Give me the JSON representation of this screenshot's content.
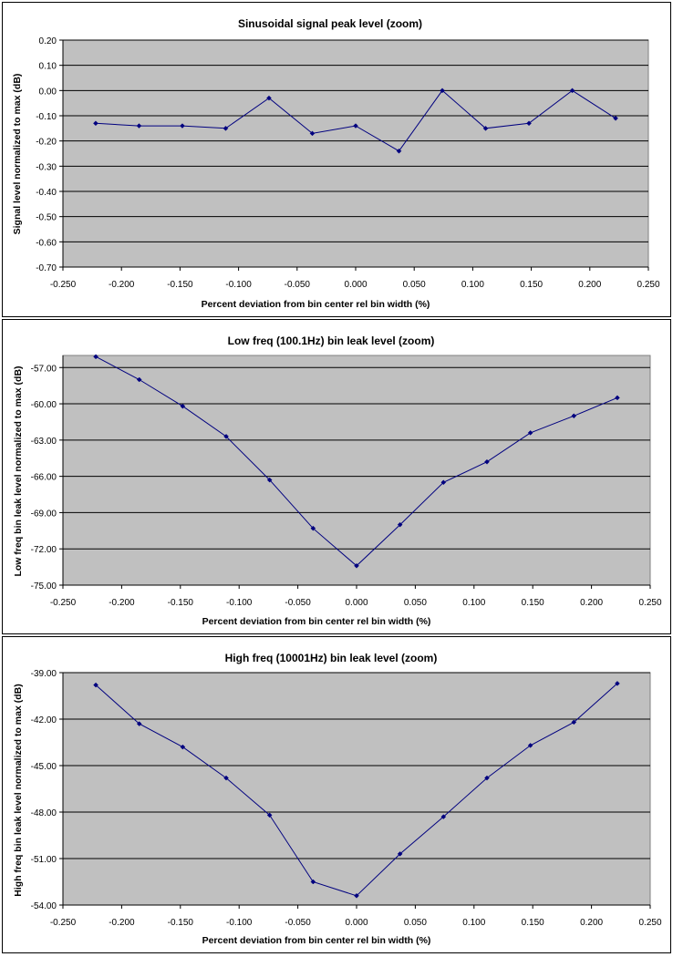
{
  "chart_data": [
    {
      "type": "line",
      "title": "Sinusoidal signal peak level (zoom)",
      "xlabel": "Percent deviation from bin center rel bin width (%)",
      "ylabel": "Signal level normalized to max (dB)",
      "xlim": [
        -0.25,
        0.25
      ],
      "ylim": [
        -0.7,
        0.2
      ],
      "x_ticks": [
        "-0.250",
        "-0.200",
        "-0.150",
        "-0.100",
        "-0.050",
        "0.000",
        "0.050",
        "0.100",
        "0.150",
        "0.200",
        "0.250"
      ],
      "y_ticks": [
        "0.20",
        "0.10",
        "0.00",
        "-0.10",
        "-0.20",
        "-0.30",
        "-0.40",
        "-0.50",
        "-0.60",
        "-0.70"
      ],
      "grid": "horizontal",
      "colors": {
        "plot_bg": "#c0c0c0",
        "line": "#00007f"
      },
      "x": [
        -0.222,
        -0.185,
        -0.148,
        -0.111,
        -0.074,
        -0.037,
        0.0,
        0.037,
        0.074,
        0.111,
        0.148,
        0.185,
        0.222
      ],
      "y": [
        -0.13,
        -0.14,
        -0.14,
        -0.15,
        -0.03,
        -0.17,
        -0.14,
        -0.24,
        0.0,
        -0.15,
        -0.13,
        0.0,
        -0.11
      ]
    },
    {
      "type": "line",
      "title": "Low freq (100.1Hz) bin leak level (zoom)",
      "xlabel": "Percent deviation from bin center rel bin width (%)",
      "ylabel": "Low freq bin leak level normalized to max (dB)",
      "xlim": [
        -0.25,
        0.25
      ],
      "ylim": [
        -75,
        -56
      ],
      "x_ticks": [
        "-0.250",
        "-0.200",
        "-0.150",
        "-0.100",
        "-0.050",
        "0.000",
        "0.050",
        "0.100",
        "0.150",
        "0.200",
        "0.250"
      ],
      "y_ticks": [
        "-57.00",
        "-60.00",
        "-63.00",
        "-66.00",
        "-69.00",
        "-72.00",
        "-75.00"
      ],
      "grid": "horizontal",
      "colors": {
        "plot_bg": "#c0c0c0",
        "line": "#00007f"
      },
      "x": [
        -0.222,
        -0.185,
        -0.148,
        -0.111,
        -0.074,
        -0.037,
        0.0,
        0.037,
        0.074,
        0.111,
        0.148,
        0.185,
        0.222
      ],
      "y": [
        -56.1,
        -58.0,
        -60.2,
        -62.7,
        -66.3,
        -70.3,
        -73.4,
        -70.0,
        -66.5,
        -64.8,
        -62.4,
        -61.0,
        -59.5
      ]
    },
    {
      "type": "line",
      "title": "High freq (10001Hz) bin leak level (zoom)",
      "xlabel": "Percent deviation from bin center rel bin width (%)",
      "ylabel": "High freq bin leak level normalized to max (dB)",
      "xlim": [
        -0.25,
        0.25
      ],
      "ylim": [
        -54,
        -39
      ],
      "x_ticks": [
        "-0.250",
        "-0.200",
        "-0.150",
        "-0.100",
        "-0.050",
        "0.000",
        "0.050",
        "0.100",
        "0.150",
        "0.200",
        "0.250"
      ],
      "y_ticks": [
        "-39.00",
        "-42.00",
        "-45.00",
        "-48.00",
        "-51.00",
        "-54.00"
      ],
      "grid": "horizontal",
      "colors": {
        "plot_bg": "#c0c0c0",
        "line": "#00007f"
      },
      "x": [
        -0.222,
        -0.185,
        -0.148,
        -0.111,
        -0.074,
        -0.037,
        0.0,
        0.037,
        0.074,
        0.111,
        0.148,
        0.185,
        0.222
      ],
      "y": [
        -39.8,
        -42.3,
        -43.8,
        -45.8,
        -48.2,
        -52.5,
        -53.4,
        -50.7,
        -48.3,
        -45.8,
        -43.7,
        -42.2,
        -39.7
      ]
    }
  ]
}
